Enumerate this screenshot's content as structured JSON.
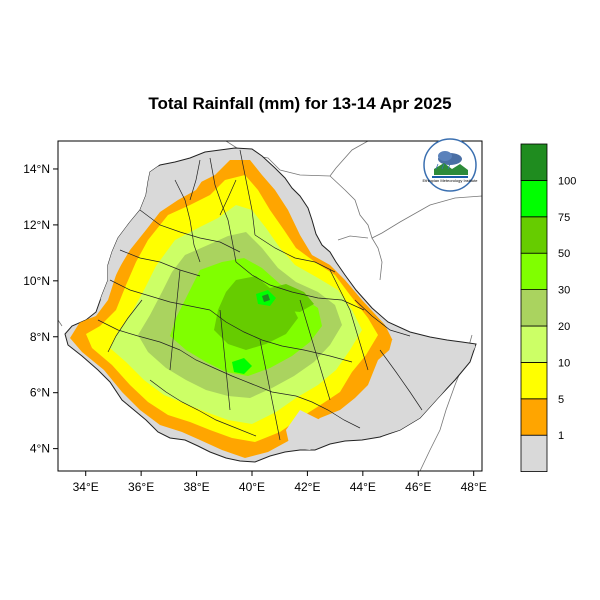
{
  "title": "Total Rainfall (mm) for 13-14 Apr 2025",
  "map": {
    "x_axis": {
      "ticks": [
        {
          "value": 34,
          "label": "34°E"
        },
        {
          "value": 36,
          "label": "36°E"
        },
        {
          "value": 38,
          "label": "38°E"
        },
        {
          "value": 40,
          "label": "40°E"
        },
        {
          "value": 42,
          "label": "42°E"
        },
        {
          "value": 44,
          "label": "44°E"
        },
        {
          "value": 46,
          "label": "46°E"
        },
        {
          "value": 48,
          "label": "48°E"
        }
      ]
    },
    "y_axis": {
      "ticks": [
        {
          "value": 4,
          "label": "4°N"
        },
        {
          "value": 6,
          "label": "6°N"
        },
        {
          "value": 8,
          "label": "8°N"
        },
        {
          "value": 10,
          "label": "10°N"
        },
        {
          "value": 12,
          "label": "12°N"
        },
        {
          "value": 14,
          "label": "14°N"
        }
      ]
    },
    "lon_range": [
      33,
      48.3
    ],
    "lat_range": [
      3.2,
      15
    ],
    "colors": {
      "country_fill": "#d9d9d9",
      "border": "#222222",
      "neighbor_border": "#777777"
    }
  },
  "legend": {
    "bins": [
      {
        "label": "1",
        "color": "#d9d9d9"
      },
      {
        "label": "5",
        "color": "#ffa500"
      },
      {
        "label": "10",
        "color": "#ffff00"
      },
      {
        "label": "20",
        "color": "#ccff66"
      },
      {
        "label": "30",
        "color": "#aad35f"
      },
      {
        "label": "50",
        "color": "#80ff00"
      },
      {
        "label": "75",
        "color": "#66cc00"
      },
      {
        "label": "100",
        "color": "#00ff00"
      },
      {
        "label": "",
        "color": "#1f8c1f"
      }
    ]
  },
  "logo": {
    "name": "logo-ethiopian-meteorology-institute",
    "text": "Ethiopian Meteorology Institute"
  }
}
